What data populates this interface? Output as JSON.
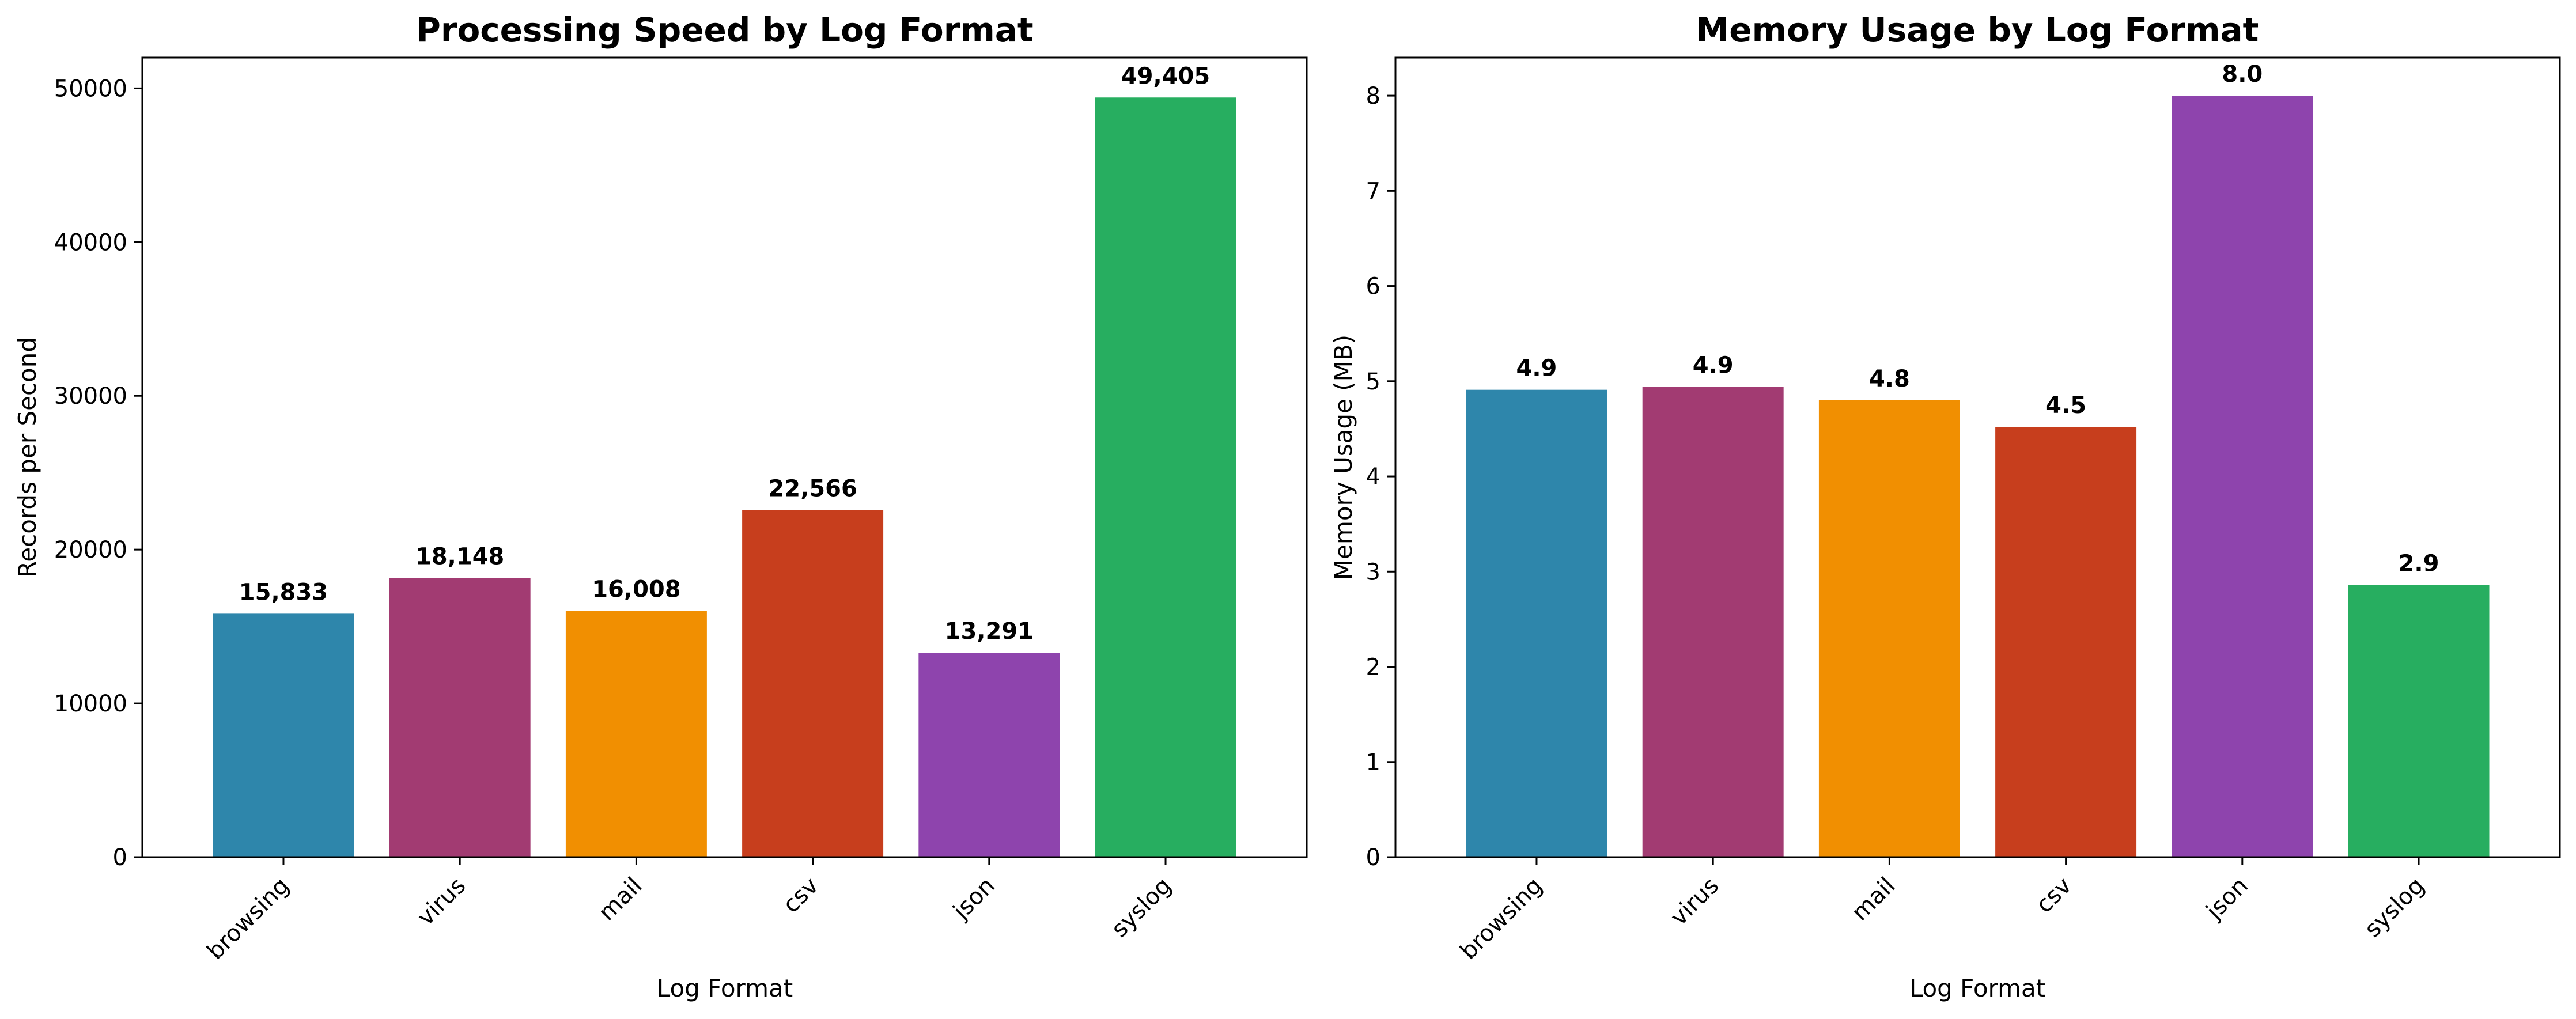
{
  "chart_data": [
    {
      "type": "bar",
      "title": "Processing Speed by Log Format",
      "xlabel": "Log Format",
      "ylabel": "Records per Second",
      "categories": [
        "browsing",
        "virus",
        "mail",
        "csv",
        "json",
        "syslog"
      ],
      "values": [
        15833,
        18148,
        16008,
        22566,
        13291,
        49405
      ],
      "value_labels": [
        "15,833",
        "18,148",
        "16,008",
        "22,566",
        "13,291",
        "49,405"
      ],
      "colors": [
        "#2e86ab",
        "#a23b72",
        "#f18f01",
        "#c73e1d",
        "#8e44ad",
        "#27ae60"
      ],
      "ylim": [
        0,
        52000
      ],
      "yticks": [
        0,
        10000,
        20000,
        30000,
        40000,
        50000
      ],
      "ytick_labels": [
        "0",
        "10000",
        "20000",
        "30000",
        "40000",
        "50000"
      ],
      "grid": false
    },
    {
      "type": "bar",
      "title": "Memory Usage by Log Format",
      "xlabel": "Log Format",
      "ylabel": "Memory Usage (MB)",
      "categories": [
        "browsing",
        "virus",
        "mail",
        "csv",
        "json",
        "syslog"
      ],
      "values": [
        4.91,
        4.94,
        4.8,
        4.52,
        8.0,
        2.86
      ],
      "value_labels": [
        "4.9",
        "4.9",
        "4.8",
        "4.5",
        "8.0",
        "2.9"
      ],
      "colors": [
        "#2e86ab",
        "#a23b72",
        "#f18f01",
        "#c73e1d",
        "#8e44ad",
        "#27ae60"
      ],
      "ylim": [
        0,
        8.4
      ],
      "yticks": [
        0,
        1,
        2,
        3,
        4,
        5,
        6,
        7,
        8
      ],
      "ytick_labels": [
        "0",
        "1",
        "2",
        "3",
        "4",
        "5",
        "6",
        "7",
        "8"
      ],
      "grid": false
    }
  ]
}
